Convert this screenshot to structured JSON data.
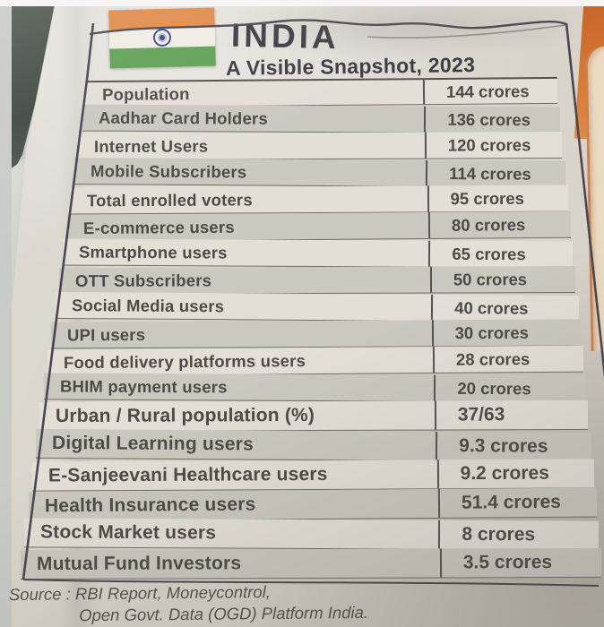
{
  "header": {
    "title": "INDIA",
    "subtitle": "A Visible Snapshot, 2023"
  },
  "table": {
    "rows": [
      {
        "label": "Population",
        "value": "144 crores"
      },
      {
        "label": "Aadhar Card Holders",
        "value": "136 crores"
      },
      {
        "label": "Internet Users",
        "value": "120 crores"
      },
      {
        "label": "Mobile Subscribers",
        "value": "114 crores"
      },
      {
        "label": "Total enrolled voters",
        "value": "95 crores"
      },
      {
        "label": "E-commerce users",
        "value": "80 crores"
      },
      {
        "label": "Smartphone users",
        "value": "65 crores"
      },
      {
        "label": "OTT Subscribers",
        "value": "50 crores"
      },
      {
        "label": "Social Media users",
        "value": "40 crores"
      },
      {
        "label": "UPI users",
        "value": "30 crores"
      },
      {
        "label": "Food delivery platforms users",
        "value": "28 crores"
      },
      {
        "label": "BHIM payment users",
        "value": "20 crores"
      },
      {
        "label": "Urban / Rural population (%)",
        "value": "37/63"
      },
      {
        "label": "Digital Learning users",
        "value": "9.3 crores"
      },
      {
        "label": "E-Sanjeevani Healthcare users",
        "value": "9.2 crores"
      },
      {
        "label": "Health Insurance users",
        "value": "51.4 crores"
      },
      {
        "label": "Stock Market users",
        "value": "8 crores"
      },
      {
        "label": "Mutual Fund Investors",
        "value": "3.5 crores"
      }
    ]
  },
  "source": {
    "line1": "Source : RBI Report, Moneycontrol,",
    "line2": "Open Govt. Data (OGD) Platform India."
  },
  "colors": {
    "paper": "#d8d4cb",
    "row_light": "#e3dfd7",
    "row_shaded": "#cbc8c0",
    "ink": "#4e4a47",
    "border": "#4b4750",
    "flag_saffron": "#e18c4b",
    "flag_white": "#f0ece4",
    "flag_green": "#61a156",
    "chakra_navy": "#3d4c94",
    "side_graphic_orange": "#cc6a2e"
  }
}
